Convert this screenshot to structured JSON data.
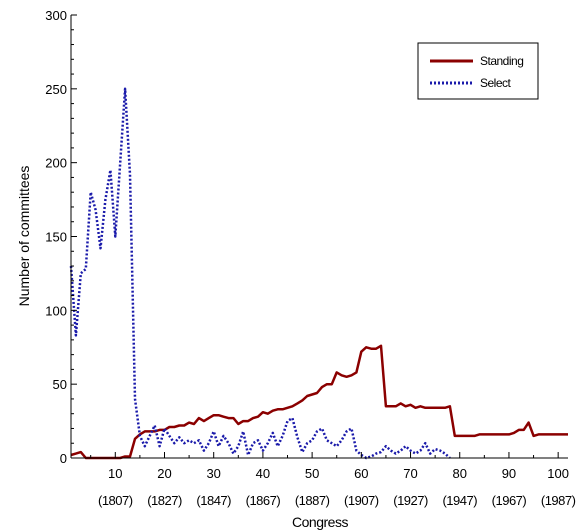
{
  "chart_data": {
    "type": "line",
    "xlabel": "Congress",
    "ylabel": "Number of committees",
    "xlim": [
      1,
      102
    ],
    "ylim": [
      0,
      300
    ],
    "x_ticks": [
      {
        "value": 10,
        "label": "10",
        "sublabel": "(1807)"
      },
      {
        "value": 20,
        "label": "20",
        "sublabel": "(1827)"
      },
      {
        "value": 30,
        "label": "30",
        "sublabel": "(1847)"
      },
      {
        "value": 40,
        "label": "40",
        "sublabel": "(1867)"
      },
      {
        "value": 50,
        "label": "50",
        "sublabel": "(1887)"
      },
      {
        "value": 60,
        "label": "60",
        "sublabel": "(1907)"
      },
      {
        "value": 70,
        "label": "70",
        "sublabel": "(1927)"
      },
      {
        "value": 80,
        "label": "80",
        "sublabel": "(1947)"
      },
      {
        "value": 90,
        "label": "90",
        "sublabel": "(1967)"
      },
      {
        "value": 100,
        "label": "100",
        "sublabel": "(1987)"
      }
    ],
    "y_ticks": [
      0,
      50,
      100,
      150,
      200,
      250,
      300
    ],
    "legend_position": "top-right",
    "series": [
      {
        "name": "Standing",
        "color": "#8b0000",
        "style": "solid",
        "points": [
          [
            1,
            2
          ],
          [
            2,
            3
          ],
          [
            3,
            4
          ],
          [
            4,
            0
          ],
          [
            5,
            0
          ],
          [
            6,
            0
          ],
          [
            7,
            0
          ],
          [
            8,
            0
          ],
          [
            9,
            0
          ],
          [
            10,
            0
          ],
          [
            11,
            0
          ],
          [
            12,
            1
          ],
          [
            13,
            1
          ],
          [
            14,
            13
          ],
          [
            15,
            16
          ],
          [
            16,
            18
          ],
          [
            17,
            18
          ],
          [
            18,
            18
          ],
          [
            19,
            19
          ],
          [
            20,
            19
          ],
          [
            21,
            21
          ],
          [
            22,
            21
          ],
          [
            23,
            22
          ],
          [
            24,
            22
          ],
          [
            25,
            24
          ],
          [
            26,
            23
          ],
          [
            27,
            27
          ],
          [
            28,
            25
          ],
          [
            29,
            27
          ],
          [
            30,
            29
          ],
          [
            31,
            29
          ],
          [
            32,
            28
          ],
          [
            33,
            27
          ],
          [
            34,
            27
          ],
          [
            35,
            23
          ],
          [
            36,
            25
          ],
          [
            37,
            25
          ],
          [
            38,
            27
          ],
          [
            39,
            28
          ],
          [
            40,
            31
          ],
          [
            41,
            30
          ],
          [
            42,
            32
          ],
          [
            43,
            33
          ],
          [
            44,
            33
          ],
          [
            45,
            34
          ],
          [
            46,
            35
          ],
          [
            47,
            37
          ],
          [
            48,
            39
          ],
          [
            49,
            42
          ],
          [
            50,
            43
          ],
          [
            51,
            44
          ],
          [
            52,
            48
          ],
          [
            53,
            50
          ],
          [
            54,
            50
          ],
          [
            55,
            58
          ],
          [
            56,
            56
          ],
          [
            57,
            55
          ],
          [
            58,
            56
          ],
          [
            59,
            58
          ],
          [
            60,
            72
          ],
          [
            61,
            75
          ],
          [
            62,
            74
          ],
          [
            63,
            74
          ],
          [
            64,
            76
          ],
          [
            65,
            35
          ],
          [
            66,
            35
          ],
          [
            67,
            35
          ],
          [
            68,
            37
          ],
          [
            69,
            35
          ],
          [
            70,
            36
          ],
          [
            71,
            34
          ],
          [
            72,
            35
          ],
          [
            73,
            34
          ],
          [
            74,
            34
          ],
          [
            75,
            34
          ],
          [
            76,
            34
          ],
          [
            77,
            34
          ],
          [
            78,
            35
          ],
          [
            79,
            15
          ],
          [
            80,
            15
          ],
          [
            81,
            15
          ],
          [
            82,
            15
          ],
          [
            83,
            15
          ],
          [
            84,
            16
          ],
          [
            85,
            16
          ],
          [
            86,
            16
          ],
          [
            87,
            16
          ],
          [
            88,
            16
          ],
          [
            89,
            16
          ],
          [
            90,
            16
          ],
          [
            91,
            17
          ],
          [
            92,
            19
          ],
          [
            93,
            19
          ],
          [
            94,
            24
          ],
          [
            95,
            15
          ],
          [
            96,
            16
          ],
          [
            97,
            16
          ],
          [
            98,
            16
          ],
          [
            99,
            16
          ],
          [
            100,
            16
          ],
          [
            101,
            16
          ],
          [
            102,
            16
          ]
        ]
      },
      {
        "name": "Select",
        "color": "#1a1aaa",
        "style": "dotted",
        "points": [
          [
            1,
            130
          ],
          [
            2,
            83
          ],
          [
            3,
            125
          ],
          [
            4,
            128
          ],
          [
            5,
            180
          ],
          [
            6,
            168
          ],
          [
            7,
            142
          ],
          [
            8,
            175
          ],
          [
            9,
            195
          ],
          [
            10,
            150
          ],
          [
            11,
            200
          ],
          [
            12,
            250
          ],
          [
            13,
            192
          ],
          [
            14,
            40
          ],
          [
            15,
            15
          ],
          [
            16,
            8
          ],
          [
            17,
            15
          ],
          [
            18,
            22
          ],
          [
            19,
            8
          ],
          [
            20,
            20
          ],
          [
            21,
            15
          ],
          [
            22,
            10
          ],
          [
            23,
            14
          ],
          [
            24,
            10
          ],
          [
            25,
            12
          ],
          [
            26,
            10
          ],
          [
            27,
            12
          ],
          [
            28,
            5
          ],
          [
            29,
            10
          ],
          [
            30,
            18
          ],
          [
            31,
            8
          ],
          [
            32,
            15
          ],
          [
            33,
            10
          ],
          [
            34,
            3
          ],
          [
            35,
            8
          ],
          [
            36,
            18
          ],
          [
            37,
            2
          ],
          [
            38,
            10
          ],
          [
            39,
            12
          ],
          [
            40,
            5
          ],
          [
            41,
            10
          ],
          [
            42,
            17
          ],
          [
            43,
            8
          ],
          [
            44,
            15
          ],
          [
            45,
            25
          ],
          [
            46,
            27
          ],
          [
            47,
            14
          ],
          [
            48,
            4
          ],
          [
            49,
            10
          ],
          [
            50,
            12
          ],
          [
            51,
            18
          ],
          [
            52,
            20
          ],
          [
            53,
            12
          ],
          [
            54,
            10
          ],
          [
            55,
            8
          ],
          [
            56,
            12
          ],
          [
            57,
            18
          ],
          [
            58,
            20
          ],
          [
            59,
            5
          ],
          [
            60,
            2
          ],
          [
            61,
            0
          ],
          [
            62,
            1
          ],
          [
            63,
            3
          ],
          [
            64,
            4
          ],
          [
            65,
            8
          ],
          [
            66,
            5
          ],
          [
            67,
            3
          ],
          [
            68,
            5
          ],
          [
            69,
            8
          ],
          [
            70,
            5
          ],
          [
            71,
            3
          ],
          [
            72,
            5
          ],
          [
            73,
            10
          ],
          [
            74,
            3
          ],
          [
            75,
            6
          ],
          [
            76,
            5
          ],
          [
            77,
            3
          ],
          [
            78,
            0
          ]
        ]
      }
    ]
  }
}
